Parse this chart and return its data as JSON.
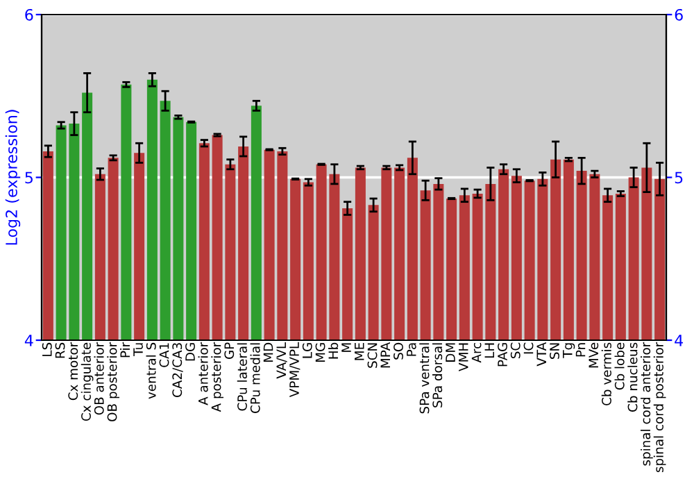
{
  "chart_data": {
    "type": "bar",
    "ylabel": "Log2 (expression)",
    "categories": [
      "LS",
      "RS",
      "Cx motor",
      "Cx cingulate",
      "OB anterior",
      "OB posterior",
      "Pir",
      "Tu",
      "ventral S",
      "CA1",
      "CA2/CA3",
      "DG",
      "A anterior",
      "A posterior",
      "GP",
      "CPu lateral",
      "CPu medial",
      "MD",
      "VA/VL",
      "VPM/VPL",
      "LG",
      "MG",
      "Hb",
      "M",
      "ME",
      "SCN",
      "MPA",
      "SO",
      "Pa",
      "SPa ventral",
      "SPa dorsal",
      "DM",
      "VMH",
      "Arc",
      "LH",
      "PAG",
      "SC",
      "IC",
      "VTA",
      "SN",
      "Tg",
      "Pn",
      "MVe",
      "Cb vermis",
      "Cb lobe",
      "Cb nucleus",
      "spinal cord anterior",
      "spinal cord posterior"
    ],
    "values": [
      5.16,
      5.32,
      5.33,
      5.52,
      5.02,
      5.12,
      5.57,
      5.15,
      5.6,
      5.47,
      5.37,
      5.34,
      5.21,
      5.26,
      5.08,
      5.19,
      5.44,
      5.17,
      5.16,
      4.99,
      4.97,
      5.08,
      5.02,
      4.81,
      5.06,
      4.83,
      5.06,
      5.06,
      5.12,
      4.92,
      4.96,
      4.87,
      4.89,
      4.9,
      4.96,
      5.05,
      5.01,
      4.98,
      4.99,
      5.11,
      5.11,
      5.04,
      5.02,
      4.89,
      4.9,
      5.0,
      5.06,
      4.99
    ],
    "errors": [
      0.035,
      0.02,
      0.07,
      0.12,
      0.035,
      0.015,
      0.015,
      0.06,
      0.04,
      0.06,
      0.01,
      0.003,
      0.02,
      0.007,
      0.03,
      0.06,
      0.03,
      0.003,
      0.02,
      0.003,
      0.02,
      0.003,
      0.06,
      0.04,
      0.01,
      0.04,
      0.01,
      0.015,
      0.1,
      0.06,
      0.035,
      0.003,
      0.04,
      0.025,
      0.1,
      0.03,
      0.04,
      0.003,
      0.04,
      0.11,
      0.01,
      0.08,
      0.02,
      0.04,
      0.015,
      0.06,
      0.15,
      0.1
    ],
    "colors": [
      "#b83a3a",
      "#2e9e2e",
      "#2e9e2e",
      "#2e9e2e",
      "#b83a3a",
      "#b83a3a",
      "#2e9e2e",
      "#b83a3a",
      "#2e9e2e",
      "#2e9e2e",
      "#2e9e2e",
      "#2e9e2e",
      "#b83a3a",
      "#b83a3a",
      "#b83a3a",
      "#b83a3a",
      "#2e9e2e",
      "#b83a3a",
      "#b83a3a",
      "#b83a3a",
      "#b83a3a",
      "#b83a3a",
      "#b83a3a",
      "#b83a3a",
      "#b83a3a",
      "#b83a3a",
      "#b83a3a",
      "#b83a3a",
      "#b83a3a",
      "#b83a3a",
      "#b83a3a",
      "#b83a3a",
      "#b83a3a",
      "#b83a3a",
      "#b83a3a",
      "#b83a3a",
      "#b83a3a",
      "#b83a3a",
      "#b83a3a",
      "#b83a3a",
      "#b83a3a",
      "#b83a3a",
      "#b83a3a",
      "#b83a3a",
      "#b83a3a",
      "#b83a3a",
      "#b83a3a",
      "#b83a3a"
    ],
    "ylim": [
      4,
      6
    ],
    "yticks": [
      4,
      5,
      6
    ],
    "y2lim": [
      4,
      6
    ],
    "y2ticks": [
      4,
      5,
      6
    ],
    "grid": "y"
  }
}
